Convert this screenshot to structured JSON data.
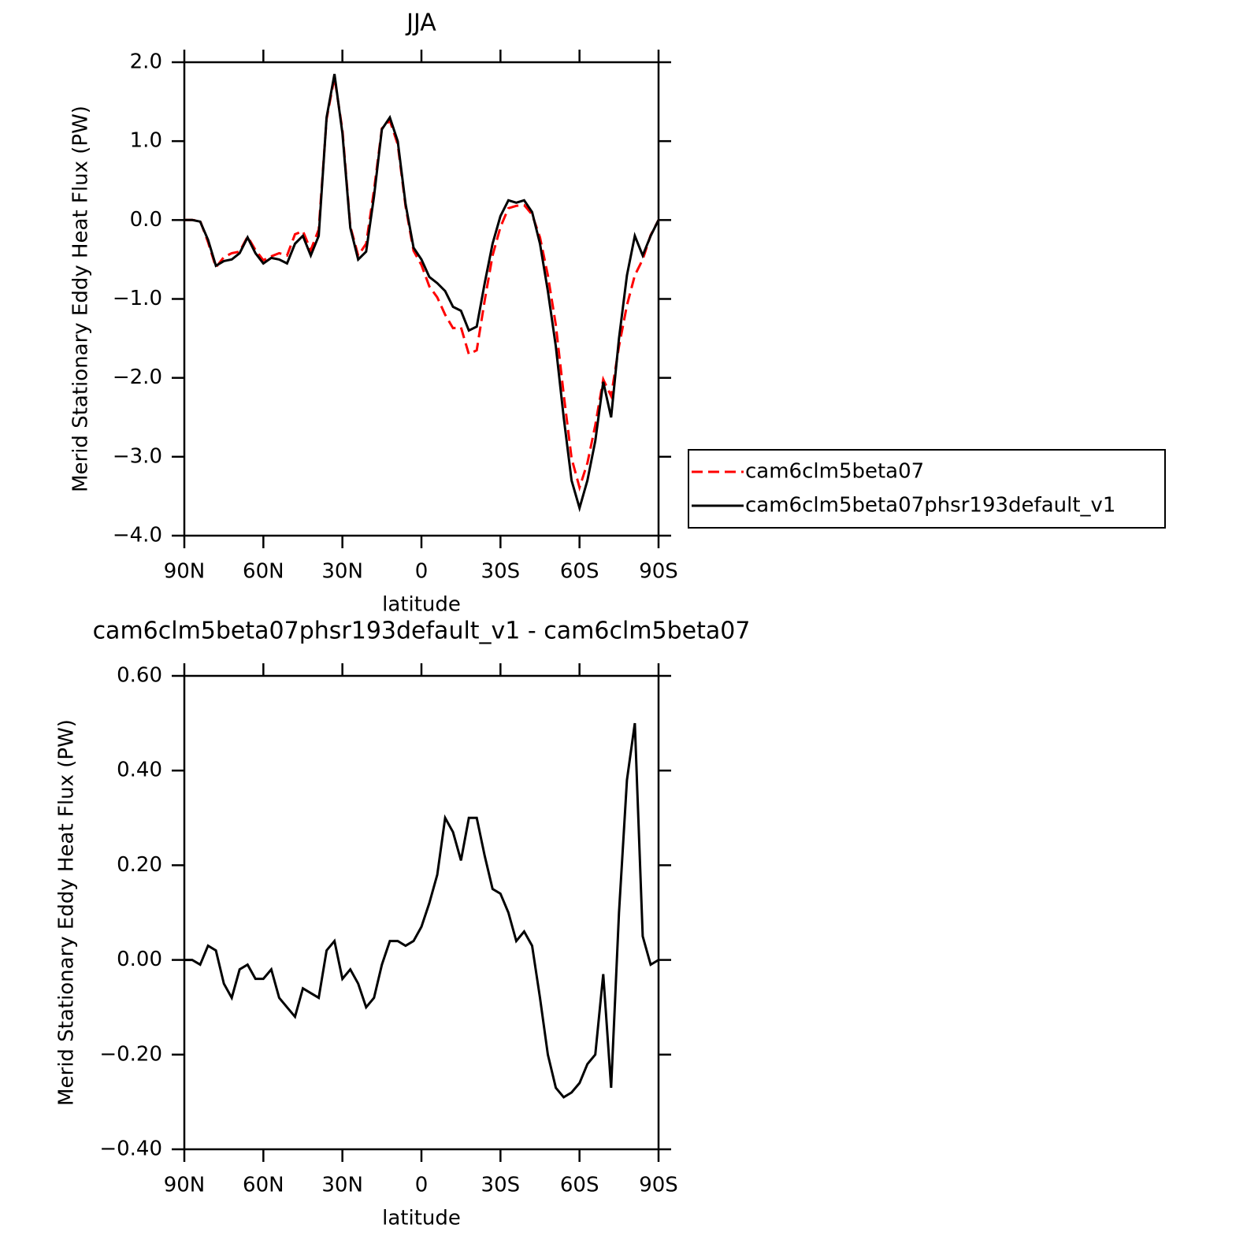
{
  "chart_data": [
    {
      "type": "line",
      "title": "JJA",
      "x_label": "latitude",
      "y_label": "Merid Stationary Eddy Heat Flux (PW)",
      "x": [
        90,
        87,
        84,
        81,
        78,
        75,
        72,
        69,
        66,
        63,
        60,
        57,
        54,
        51,
        48,
        45,
        42,
        39,
        36,
        33,
        30,
        27,
        24,
        21,
        18,
        15,
        12,
        9,
        6,
        3,
        0,
        -3,
        -6,
        -9,
        -12,
        -15,
        -18,
        -21,
        -24,
        -27,
        -30,
        -33,
        -36,
        -39,
        -42,
        -45,
        -48,
        -51,
        -54,
        -57,
        -60,
        -63,
        -66,
        -69,
        -72,
        -75,
        -78,
        -81,
        -84,
        -87,
        -90
      ],
      "xlim": [
        90,
        -90
      ],
      "xticks": [
        {
          "value": 90,
          "label": "90N"
        },
        {
          "value": 60,
          "label": "60N"
        },
        {
          "value": 30,
          "label": "30N"
        },
        0,
        {
          "value": -30,
          "label": "30S"
        },
        {
          "value": -60,
          "label": "60S"
        },
        {
          "value": -90,
          "label": "90S"
        }
      ],
      "ylim": [
        -4,
        2
      ],
      "yticks": [
        {
          "value": -4,
          "label": "−4.0"
        },
        {
          "value": -3,
          "label": "−3.0"
        },
        {
          "value": -2,
          "label": "−2.0"
        },
        {
          "value": -1,
          "label": "−1.0"
        },
        {
          "value": 0,
          "label": "0.0"
        },
        {
          "value": 1,
          "label": "1.0"
        },
        {
          "value": 2,
          "label": "2.0"
        }
      ],
      "legend": "right",
      "series": [
        {
          "name": "cam6clm5beta07",
          "color": "#ff0000",
          "line_style": "dashed",
          "values": [
            0,
            0,
            -0.01,
            -0.28,
            -0.6,
            -0.47,
            -0.42,
            -0.4,
            -0.21,
            -0.38,
            -0.51,
            -0.46,
            -0.42,
            -0.45,
            -0.18,
            -0.14,
            -0.38,
            -0.12,
            1.28,
            1.81,
            1.14,
            -0.08,
            -0.45,
            -0.3,
            0.38,
            1.16,
            1.26,
            0.96,
            0.17,
            -0.39,
            -0.57,
            -0.84,
            -0.98,
            -1.2,
            -1.37,
            -1.36,
            -1.7,
            -1.65,
            -1.02,
            -0.45,
            -0.09,
            0.15,
            0.18,
            0.19,
            0.07,
            -0.22,
            -0.7,
            -1.33,
            -2.21,
            -3.02,
            -3.39,
            -3.08,
            -2.6,
            -2.02,
            -2.23,
            -1.6,
            -1.08,
            -0.7,
            -0.5,
            -0.19,
            0
          ]
        },
        {
          "name": "cam6clm5beta07phsr193default_v1",
          "color": "#000000",
          "line_style": "solid",
          "values": [
            0,
            0,
            -0.02,
            -0.25,
            -0.58,
            -0.52,
            -0.5,
            -0.42,
            -0.22,
            -0.42,
            -0.55,
            -0.48,
            -0.5,
            -0.55,
            -0.3,
            -0.2,
            -0.45,
            -0.2,
            1.3,
            1.85,
            1.1,
            -0.1,
            -0.5,
            -0.4,
            0.3,
            1.15,
            1.3,
            1.0,
            0.2,
            -0.35,
            -0.5,
            -0.72,
            -0.8,
            -0.9,
            -1.1,
            -1.15,
            -1.4,
            -1.35,
            -0.8,
            -0.3,
            0.05,
            0.25,
            0.22,
            0.25,
            0.1,
            -0.3,
            -0.9,
            -1.6,
            -2.5,
            -3.3,
            -3.65,
            -3.3,
            -2.8,
            -2.05,
            -2.5,
            -1.5,
            -0.7,
            -0.2,
            -0.45,
            -0.2,
            0
          ]
        }
      ]
    },
    {
      "type": "line",
      "title": "cam6clm5beta07phsr193default_v1 - cam6clm5beta07",
      "x_label": "latitude",
      "y_label": "Merid Stationary Eddy Heat Flux (PW)",
      "x": [
        90,
        87,
        84,
        81,
        78,
        75,
        72,
        69,
        66,
        63,
        60,
        57,
        54,
        51,
        48,
        45,
        42,
        39,
        36,
        33,
        30,
        27,
        24,
        21,
        18,
        15,
        12,
        9,
        6,
        3,
        0,
        -3,
        -6,
        -9,
        -12,
        -15,
        -18,
        -21,
        -24,
        -27,
        -30,
        -33,
        -36,
        -39,
        -42,
        -45,
        -48,
        -51,
        -54,
        -57,
        -60,
        -63,
        -66,
        -69,
        -72,
        -75,
        -78,
        -81,
        -84,
        -87,
        -90
      ],
      "xlim": [
        90,
        -90
      ],
      "xticks": [
        {
          "value": 90,
          "label": "90N"
        },
        {
          "value": 60,
          "label": "60N"
        },
        {
          "value": 30,
          "label": "30N"
        },
        0,
        {
          "value": -30,
          "label": "30S"
        },
        {
          "value": -60,
          "label": "60S"
        },
        {
          "value": -90,
          "label": "90S"
        }
      ],
      "ylim": [
        -0.4,
        0.6
      ],
      "yticks": [
        {
          "value": -0.4,
          "label": "−0.40"
        },
        {
          "value": -0.2,
          "label": "−0.20"
        },
        {
          "value": 0,
          "label": "0.00"
        },
        {
          "value": 0.2,
          "label": "0.20"
        },
        {
          "value": 0.4,
          "label": "0.40"
        },
        {
          "value": 0.6,
          "label": "0.60"
        }
      ],
      "series": [
        {
          "color": "#000000",
          "line_style": "solid",
          "values": [
            0,
            0,
            -0.01,
            0.03,
            0.02,
            -0.05,
            -0.08,
            -0.02,
            -0.01,
            -0.04,
            -0.04,
            -0.02,
            -0.08,
            -0.1,
            -0.12,
            -0.06,
            -0.07,
            -0.08,
            0.02,
            0.04,
            -0.04,
            -0.02,
            -0.05,
            -0.1,
            -0.08,
            -0.01,
            0.04,
            0.04,
            0.03,
            0.04,
            0.07,
            0.12,
            0.18,
            0.3,
            0.27,
            0.21,
            0.3,
            0.3,
            0.22,
            0.15,
            0.14,
            0.1,
            0.04,
            0.06,
            0.03,
            -0.08,
            -0.2,
            -0.27,
            -0.29,
            -0.28,
            -0.26,
            -0.22,
            -0.2,
            -0.03,
            -0.27,
            0.1,
            0.38,
            0.5,
            0.05,
            -0.01,
            0
          ]
        }
      ]
    }
  ]
}
